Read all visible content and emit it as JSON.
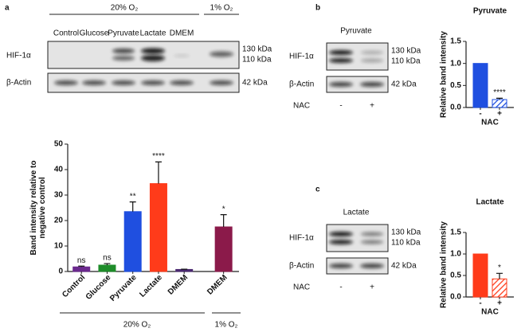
{
  "panel_a": {
    "label": "a",
    "header_groups": [
      "20% O₂",
      "1% O₂"
    ],
    "lanes": [
      "Control",
      "Glucose",
      "Pyruvate",
      "Lactate",
      "DMEM"
    ],
    "blot_rows": [
      "HIF-1α",
      "β-Actin"
    ],
    "markers": [
      "130 kDa",
      "110 kDa",
      "42 kDa"
    ]
  },
  "panel_b": {
    "label": "b",
    "title": "Pyruvate",
    "blot_rows": [
      "HIF-1α",
      "β-Actin"
    ],
    "markers": [
      "130 kDa",
      "110 kDa",
      "42 kDa"
    ],
    "treatment": "NAC",
    "lanes": [
      "-",
      "+"
    ]
  },
  "panel_c": {
    "label": "c",
    "title": "Lactate",
    "blot_rows": [
      "HIF-1α",
      "β-Actin"
    ],
    "markers": [
      "130 kDa",
      "110 kDa",
      "42 kDa"
    ],
    "treatment": "NAC",
    "lanes": [
      "-",
      "+"
    ]
  },
  "chart_data": [
    {
      "type": "bar",
      "y_label": "Band intensity relative to negative control",
      "categories": [
        "Control",
        "Glucose",
        "Pyruvate",
        "Lactate",
        "DMEM",
        "DMEM"
      ],
      "values": [
        1.8,
        2.5,
        23.5,
        34.5,
        0.8,
        17.5
      ],
      "errors": [
        0.3,
        0.6,
        3.8,
        8.5,
        0.1,
        4.8
      ],
      "annotations": [
        "ns",
        "ns",
        "**",
        "****",
        null,
        "*"
      ],
      "colors": [
        "#6b2a8e",
        "#1e8c2a",
        "#1f4fe0",
        "#ff3b1a",
        "#4a2870",
        "#8b1a4a"
      ],
      "ylim": [
        0,
        50
      ],
      "yticks": [
        0,
        10,
        20,
        30,
        40,
        50
      ],
      "group_labels": [
        "20% O₂",
        "1% O₂"
      ]
    },
    {
      "type": "bar",
      "title": "Pyruvate",
      "y_label": "Relative band intensity",
      "x_label": "NAC",
      "categories": [
        "-",
        "+"
      ],
      "values": [
        1.0,
        0.18
      ],
      "errors": [
        0,
        0.03
      ],
      "annotations": [
        null,
        "****"
      ],
      "colors": [
        "#1f4fe0",
        "#1f4fe0"
      ],
      "hatched": [
        false,
        true
      ],
      "ylim": [
        0,
        1.5
      ],
      "yticks": [
        {
          "value": 0,
          "label": "0.0"
        },
        0.5,
        {
          "value": 1,
          "label": "1.0"
        },
        1.5
      ]
    },
    {
      "type": "bar",
      "title": "Lactate",
      "y_label": "Relative band intensity",
      "x_label": "NAC",
      "categories": [
        "-",
        "+"
      ],
      "values": [
        1.0,
        0.42
      ],
      "errors": [
        0,
        0.13
      ],
      "annotations": [
        null,
        "*"
      ],
      "colors": [
        "#ff3b1a",
        "#ff3b1a"
      ],
      "hatched": [
        false,
        true
      ],
      "ylim": [
        0,
        1.5
      ],
      "yticks": [
        {
          "value": 0,
          "label": "0.0"
        },
        0.5,
        {
          "value": 1,
          "label": "1.0"
        },
        1.5
      ]
    }
  ]
}
